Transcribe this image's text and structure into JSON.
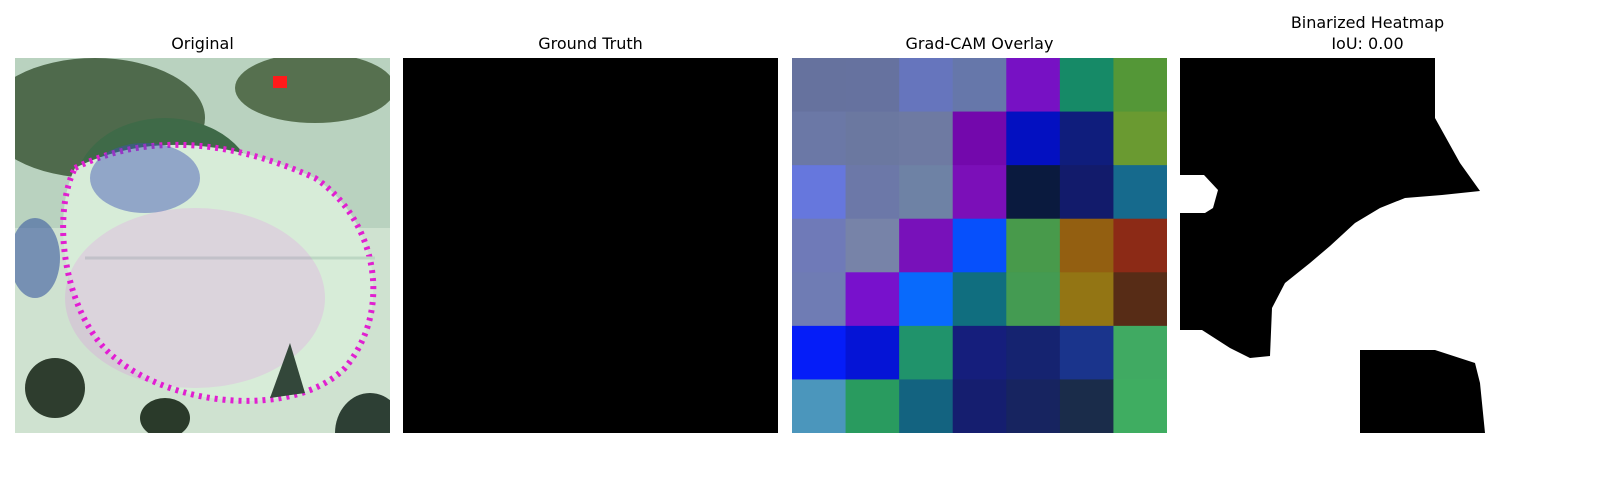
{
  "panels": {
    "original": {
      "title": "Original"
    },
    "ground_truth": {
      "title": "Ground Truth"
    },
    "gradcam": {
      "title": "Grad-CAM Overlay"
    },
    "binarized": {
      "title": "Binarized Heatmap",
      "iou_label": "IoU: 0.00"
    }
  },
  "chart_data": {
    "type": "heatmap",
    "title": "Grad-CAM Overlay",
    "rows": 7,
    "cols": 7,
    "cells": [
      [
        "#66729e",
        "#66729f",
        "#6675bd",
        "#6677aa",
        "#7711c4",
        "#168a67",
        "#549737"
      ],
      [
        "#6b78a6",
        "#6b78a0",
        "#6e7aa2",
        "#7308ac",
        "#0310c1",
        "#0f1d7c",
        "#6a9a31"
      ],
      [
        "#6677dd",
        "#6c78a8",
        "#6e82a5",
        "#7b0fb8",
        "#0a1a3e",
        "#121b6b",
        "#166a8d"
      ],
      [
        "#6f7ab8",
        "#7783a8",
        "#7811ba",
        "#0650fc",
        "#489a4b",
        "#935f11",
        "#8c2a16"
      ],
      [
        "#6f7cb4",
        "#7811cc",
        "#086afc",
        "#106e7f",
        "#449b52",
        "#937514",
        "#572c16"
      ],
      [
        "#051df8",
        "#0514d6",
        "#20936b",
        "#151e7c",
        "#152370",
        "#1a348c",
        "#40aa62"
      ],
      [
        "#4b96bc",
        "#299b5f",
        "#136380",
        "#151e6f",
        "#172460",
        "#1a2c4a",
        "#3fad61"
      ]
    ]
  }
}
